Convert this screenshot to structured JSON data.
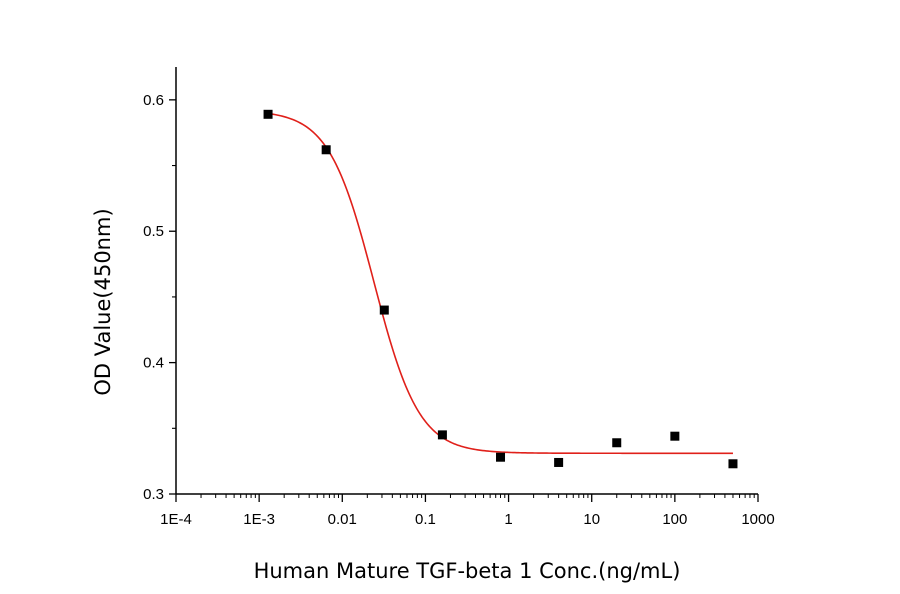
{
  "chart_data": {
    "type": "scatter",
    "xlabel": "Human Mature TGF-beta 1 Conc.(ng/mL)",
    "ylabel": "OD Value(450nm)",
    "xscale": "log",
    "xlim": [
      0.0001,
      1000
    ],
    "ylim": [
      0.3,
      0.625
    ],
    "xticks": [
      0.0001,
      0.001,
      0.01,
      0.1,
      1,
      10,
      100,
      1000
    ],
    "xtick_labels": [
      "1E-4",
      "1E-3",
      "0.01",
      "0.1",
      "1",
      "10",
      "100",
      "1000"
    ],
    "yticks": [
      0.3,
      0.4,
      0.5,
      0.6
    ],
    "ytick_labels": [
      "0.3",
      "0.4",
      "0.5",
      "0.6"
    ],
    "grid": false,
    "legend": "none",
    "series": [
      {
        "kind": "points",
        "marker": "square",
        "color": "#000000",
        "x": [
          0.00128,
          0.0064,
          0.032,
          0.16,
          0.8,
          4,
          20,
          100,
          500
        ],
        "y": [
          0.589,
          0.562,
          0.44,
          0.345,
          0.328,
          0.324,
          0.339,
          0.344,
          0.323
        ]
      },
      {
        "kind": "fit",
        "curve": "4PL logistic",
        "color": "#e0201a",
        "x_range": [
          0.00128,
          500
        ],
        "top": 0.592,
        "bottom": 0.331,
        "ec50": 0.024,
        "hill": 1.6
      }
    ]
  }
}
